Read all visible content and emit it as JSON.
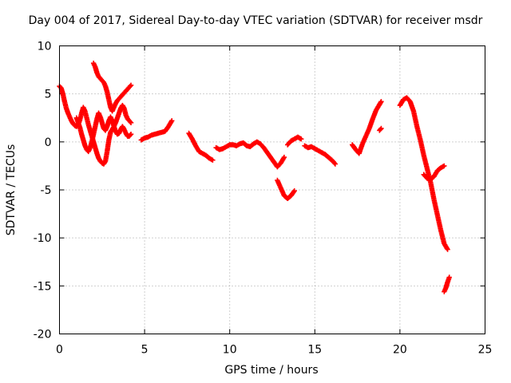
{
  "chart_data": {
    "type": "scatter",
    "title": "Day 004 of 2017, Sidereal Day-to-day VTEC variation (SDTVAR) for receiver msdr",
    "xlabel": "GPS time / hours",
    "ylabel": "SDTVAR / TECUs",
    "xlim": [
      0,
      25
    ],
    "ylim": [
      -20,
      10
    ],
    "xticks": [
      0,
      5,
      10,
      15,
      20,
      25
    ],
    "yticks": [
      -20,
      -15,
      -10,
      -5,
      0,
      5,
      10
    ],
    "grid": true,
    "marker": "plus",
    "color": "#ff0000",
    "series": [
      {
        "values": [
          [
            0.0,
            5.8
          ],
          [
            0.1,
            5.6
          ],
          [
            0.2,
            5.0
          ],
          [
            0.3,
            4.2
          ],
          [
            0.4,
            3.5
          ],
          [
            0.5,
            3.0
          ],
          [
            0.6,
            2.6
          ],
          [
            0.7,
            2.2
          ],
          [
            0.8,
            1.9
          ],
          [
            0.9,
            1.7
          ],
          [
            1.0,
            1.6
          ],
          [
            1.1,
            1.8
          ],
          [
            1.2,
            2.3
          ],
          [
            1.3,
            3.0
          ],
          [
            1.4,
            3.6
          ],
          [
            1.5,
            3.2
          ],
          [
            1.6,
            2.5
          ],
          [
            1.7,
            1.8
          ],
          [
            1.8,
            1.2
          ],
          [
            1.9,
            0.6
          ],
          [
            2.0,
            0.0
          ],
          [
            2.1,
            -0.6
          ],
          [
            2.2,
            -1.2
          ],
          [
            2.3,
            -1.7
          ],
          [
            2.4,
            -2.0
          ],
          [
            2.5,
            -2.2
          ],
          [
            2.6,
            -2.3
          ],
          [
            2.7,
            -2.0
          ],
          [
            2.8,
            -1.0
          ],
          [
            2.9,
            0.2
          ],
          [
            3.0,
            1.0
          ],
          [
            3.1,
            1.3
          ],
          [
            3.2,
            1.6
          ],
          [
            3.3,
            2.0
          ],
          [
            3.4,
            2.5
          ],
          [
            3.5,
            3.0
          ],
          [
            3.6,
            3.5
          ],
          [
            3.7,
            3.8
          ],
          [
            3.8,
            3.5
          ],
          [
            3.9,
            2.8
          ],
          [
            4.0,
            2.4
          ],
          [
            4.1,
            2.2
          ],
          [
            4.2,
            2.0
          ]
        ]
      },
      {
        "values": [
          [
            1.0,
            2.5
          ],
          [
            1.1,
            2.0
          ],
          [
            1.2,
            1.5
          ],
          [
            1.3,
            0.8
          ],
          [
            1.4,
            0.2
          ],
          [
            1.5,
            -0.4
          ],
          [
            1.6,
            -0.8
          ],
          [
            1.7,
            -1.0
          ],
          [
            1.8,
            -0.6
          ],
          [
            1.9,
            0.0
          ],
          [
            2.0,
            0.8
          ],
          [
            2.1,
            1.6
          ],
          [
            2.2,
            2.4
          ],
          [
            2.3,
            3.0
          ],
          [
            2.4,
            2.6
          ],
          [
            2.5,
            2.0
          ],
          [
            2.6,
            1.4
          ],
          [
            2.7,
            1.2
          ],
          [
            2.8,
            1.6
          ],
          [
            2.9,
            2.2
          ],
          [
            3.0,
            2.6
          ],
          [
            3.1,
            2.2
          ],
          [
            3.2,
            1.6
          ],
          [
            3.3,
            1.1
          ],
          [
            3.4,
            0.8
          ],
          [
            3.5,
            0.9
          ],
          [
            3.6,
            1.3
          ],
          [
            3.7,
            1.6
          ],
          [
            3.8,
            1.3
          ],
          [
            3.9,
            0.9
          ],
          [
            4.0,
            0.6
          ],
          [
            4.1,
            0.6
          ],
          [
            4.2,
            0.8
          ]
        ]
      },
      {
        "values": [
          [
            2.0,
            8.2
          ],
          [
            2.1,
            7.8
          ],
          [
            2.2,
            7.2
          ],
          [
            2.3,
            6.8
          ],
          [
            2.4,
            6.6
          ],
          [
            2.5,
            6.4
          ],
          [
            2.6,
            6.2
          ],
          [
            2.7,
            5.8
          ],
          [
            2.8,
            5.2
          ],
          [
            2.9,
            4.4
          ],
          [
            3.0,
            3.6
          ],
          [
            3.1,
            3.2
          ],
          [
            3.2,
            3.6
          ],
          [
            3.3,
            4.0
          ],
          [
            3.4,
            4.3
          ],
          [
            3.5,
            4.5
          ],
          [
            3.6,
            4.7
          ],
          [
            3.7,
            4.9
          ],
          [
            3.8,
            5.1
          ],
          [
            3.9,
            5.3
          ],
          [
            4.0,
            5.5
          ],
          [
            4.1,
            5.7
          ],
          [
            4.2,
            5.9
          ]
        ]
      },
      {
        "values": [
          [
            4.8,
            0.2
          ],
          [
            5.0,
            0.4
          ],
          [
            5.2,
            0.5
          ],
          [
            5.4,
            0.7
          ],
          [
            5.6,
            0.8
          ],
          [
            5.8,
            0.9
          ],
          [
            6.0,
            1.0
          ],
          [
            6.2,
            1.1
          ],
          [
            6.4,
            1.6
          ],
          [
            6.6,
            2.2
          ]
        ]
      },
      {
        "values": [
          [
            7.6,
            0.9
          ],
          [
            7.8,
            0.3
          ],
          [
            8.0,
            -0.4
          ],
          [
            8.2,
            -1.0
          ],
          [
            8.4,
            -1.2
          ],
          [
            8.6,
            -1.4
          ],
          [
            8.8,
            -1.7
          ],
          [
            9.0,
            -1.9
          ]
        ]
      },
      {
        "values": [
          [
            9.2,
            -0.6
          ],
          [
            9.4,
            -0.8
          ],
          [
            9.6,
            -0.7
          ],
          [
            9.8,
            -0.5
          ],
          [
            10.0,
            -0.3
          ],
          [
            10.2,
            -0.3
          ],
          [
            10.4,
            -0.4
          ],
          [
            10.6,
            -0.2
          ],
          [
            10.8,
            -0.1
          ],
          [
            11.0,
            -0.4
          ],
          [
            11.2,
            -0.5
          ],
          [
            11.4,
            -0.2
          ],
          [
            11.6,
            0.0
          ],
          [
            11.8,
            -0.2
          ],
          [
            12.0,
            -0.6
          ],
          [
            12.2,
            -1.1
          ],
          [
            12.4,
            -1.6
          ],
          [
            12.6,
            -2.1
          ],
          [
            12.8,
            -2.6
          ],
          [
            13.0,
            -2.2
          ],
          [
            13.2,
            -1.6
          ]
        ]
      },
      {
        "values": [
          [
            12.8,
            -4.0
          ],
          [
            13.0,
            -4.8
          ],
          [
            13.2,
            -5.6
          ],
          [
            13.4,
            -5.9
          ],
          [
            13.6,
            -5.6
          ],
          [
            13.8,
            -5.1
          ]
        ]
      },
      {
        "values": [
          [
            13.4,
            -0.3
          ],
          [
            13.6,
            0.1
          ],
          [
            13.8,
            0.3
          ],
          [
            14.0,
            0.5
          ],
          [
            14.2,
            0.3
          ]
        ]
      },
      {
        "values": [
          [
            14.4,
            -0.4
          ],
          [
            14.6,
            -0.6
          ],
          [
            14.8,
            -0.5
          ],
          [
            15.0,
            -0.7
          ],
          [
            15.2,
            -0.9
          ],
          [
            15.4,
            -1.1
          ],
          [
            15.6,
            -1.3
          ],
          [
            15.8,
            -1.6
          ],
          [
            16.0,
            -1.9
          ],
          [
            16.2,
            -2.3
          ]
        ]
      },
      {
        "values": [
          [
            17.2,
            -0.3
          ],
          [
            17.4,
            -0.8
          ],
          [
            17.6,
            -1.2
          ],
          [
            17.8,
            -0.2
          ],
          [
            18.0,
            0.6
          ],
          [
            18.2,
            1.4
          ],
          [
            18.4,
            2.4
          ],
          [
            18.6,
            3.3
          ],
          [
            18.8,
            3.9
          ],
          [
            18.9,
            4.2
          ]
        ]
      },
      {
        "values": [
          [
            18.8,
            1.2
          ],
          [
            18.9,
            1.4
          ]
        ]
      },
      {
        "values": [
          [
            20.0,
            3.8
          ],
          [
            20.2,
            4.4
          ],
          [
            20.4,
            4.6
          ],
          [
            20.6,
            4.2
          ],
          [
            20.8,
            3.2
          ],
          [
            21.0,
            1.6
          ],
          [
            21.2,
            0.2
          ],
          [
            21.4,
            -1.4
          ],
          [
            21.6,
            -2.8
          ],
          [
            21.8,
            -4.2
          ],
          [
            22.0,
            -6.0
          ],
          [
            22.2,
            -7.6
          ],
          [
            22.4,
            -9.2
          ],
          [
            22.6,
            -10.6
          ],
          [
            22.8,
            -11.2
          ]
        ]
      },
      {
        "values": [
          [
            21.4,
            -3.4
          ],
          [
            21.6,
            -3.8
          ],
          [
            21.8,
            -3.9
          ],
          [
            22.0,
            -3.6
          ],
          [
            22.2,
            -3.0
          ],
          [
            22.4,
            -2.7
          ],
          [
            22.6,
            -2.5
          ]
        ]
      },
      {
        "values": [
          [
            22.6,
            -15.6
          ],
          [
            22.7,
            -15.2
          ],
          [
            22.8,
            -14.6
          ],
          [
            22.9,
            -14.1
          ]
        ]
      }
    ]
  }
}
